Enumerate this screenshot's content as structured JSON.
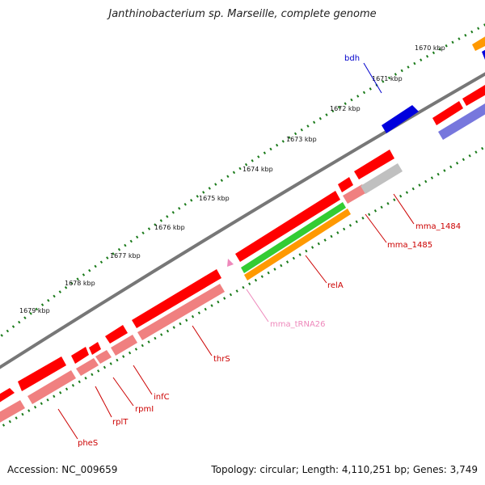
{
  "title": "Janthinobacterium sp. Marseille, complete genome",
  "footer": {
    "accession": "Accession: NC_009659",
    "summary": "Topology: circular; Length: 4,110,251 bp; Genes: 3,749"
  },
  "colors": {
    "backbone": "#777777",
    "tick": "#1a7a1a",
    "red_gene": "#ff0000",
    "pink_gene": "#f08080",
    "gray_gene": "#c0c0c0",
    "green_gene": "#33cc33",
    "orange_gene": "#ff9900",
    "blue_gene": "#0000dd",
    "purple_gene": "#7777dd",
    "trna": "#ee88bb",
    "label_red": "#cc0000",
    "label_blue": "#0000cc",
    "label_pink": "#ee88bb"
  },
  "ticks": [
    "1670 kbp",
    "1671 kbp",
    "1672 kbp",
    "1673 kbp",
    "1674 kbp",
    "1675 kbp",
    "1676 kbp",
    "1677 kbp",
    "1678 kbp",
    "1679 kbp"
  ],
  "gene_labels": {
    "bdh": "bdh",
    "mma_1484": "mma_1484",
    "mma_1485": "mma_1485",
    "relA": "relA",
    "mma_tRNA26": "mma_tRNA26",
    "thrS": "thrS",
    "infC": "infC",
    "rpmI": "rpmI",
    "rplT": "rplT",
    "pheS": "pheS"
  }
}
